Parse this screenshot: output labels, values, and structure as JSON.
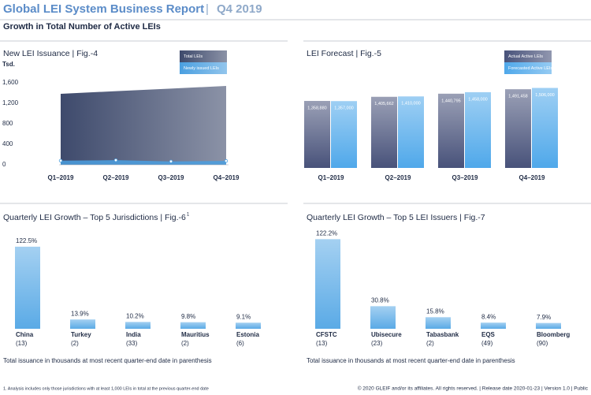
{
  "header": {
    "title": "Global LEI System Business Report",
    "period": "Q4 2019",
    "subtitle": "Growth in Total Number of Active LEIs"
  },
  "chart_data": [
    {
      "type": "area",
      "title": "New LEI Issuance | Fig.-4",
      "unit": "Tsd.",
      "categories": [
        "Q1–2019",
        "Q2–2019",
        "Q3–2019",
        "Q4–2019"
      ],
      "series": [
        {
          "name": "Total LEIs",
          "color": "#3e4a6c",
          "values": [
            1385,
            1436,
            1487,
            1538
          ]
        },
        {
          "name": "Newly issued LEIs",
          "color": "#4a9fe0",
          "values": [
            80,
            90,
            65,
            75
          ]
        }
      ],
      "ylim": [
        0,
        1600
      ],
      "yticks": [
        0,
        400,
        800,
        {
          "value": 1200,
          "label": "1,200"
        },
        {
          "value": 1600,
          "label": "1,600"
        }
      ],
      "legend": "top-right"
    },
    {
      "type": "bar",
      "title": "LEI Forecast | Fig.-5",
      "categories": [
        "Q1–2019",
        "Q2–2019",
        "Q3–2019",
        "Q4–2019"
      ],
      "series": [
        {
          "name": "Actual Active LEIs",
          "color": "#48527a",
          "values": [
            1358880,
            1405662,
            1440795,
            1491458
          ],
          "value_labels": [
            "1,358,880",
            "1,405,662",
            "1,440,795",
            "1,491,458"
          ]
        },
        {
          "name": "Forecasted Active LEIs",
          "color": "#4fa8ea",
          "values": [
            1357000,
            1410000,
            1458000,
            1506000
          ],
          "value_labels": [
            "1,357,000",
            "1,410,000",
            "1,458,000",
            "1,506,000"
          ]
        }
      ],
      "ylim": [
        600000,
        1600000
      ],
      "legend": "top-right"
    },
    {
      "type": "bar",
      "title": "Quarterly LEI Growth – Top 5 Jurisdictions | Fig.-6",
      "title_note": "1",
      "categories": [
        "China",
        "Turkey",
        "India",
        "Mauritius",
        "Estonia"
      ],
      "category_notes": [
        "(13)",
        "(2)",
        "(33)",
        "(2)",
        "(6)"
      ],
      "values": [
        122.5,
        13.9,
        10.2,
        9.8,
        9.1
      ],
      "value_labels": [
        "122.5%",
        "13.9%",
        "10.2%",
        "9.8%",
        "9.1%"
      ],
      "color": "#5aaae6",
      "caption": "Total issuance in thousands at most recent quarter-end date in parenthesis"
    },
    {
      "type": "bar",
      "title": "Quarterly LEI Growth – Top 5 LEI Issuers | Fig.-7",
      "categories": [
        "CFSTC",
        "Ubisecure",
        "Tabasbank",
        "EQS",
        "Bloomberg"
      ],
      "category_notes": [
        "(13)",
        "(23)",
        "(2)",
        "(49)",
        "(90)"
      ],
      "values": [
        122.2,
        30.8,
        15.8,
        8.4,
        7.9
      ],
      "value_labels": [
        "122.2%",
        "30.8%",
        "15.8%",
        "8.4%",
        "7.9%"
      ],
      "color": "#5aaae6",
      "caption": "Total issuance in thousands at most recent quarter-end date in parenthesis"
    }
  ],
  "footer": {
    "footnote": "1. Analysis includes only those jurisdictions with at least 1,000 LEIs in total at the previous quarter-end date",
    "copyright": "© 2020 GLEIF and/or its affiliates. All rights reserved. | Release date 2020-01-23 | Version 1.0 | Public"
  }
}
